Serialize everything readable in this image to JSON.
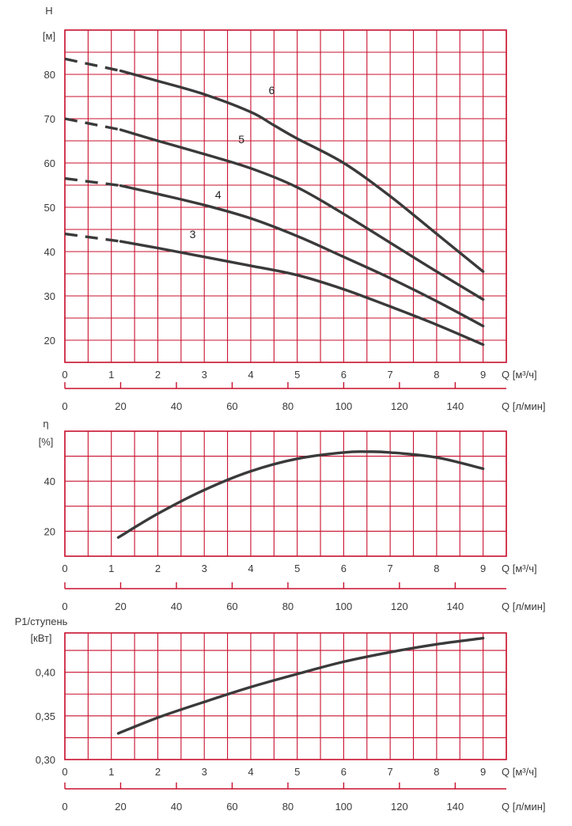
{
  "colors": {
    "grid": "#c8102e",
    "curve": "#3a3a3a",
    "text": "#3a3a3a"
  },
  "chart_data": [
    {
      "id": "head",
      "type": "line",
      "ylabel_lines": [
        "H",
        "[м]"
      ],
      "xlabel_primary": "Q [м³/ч]",
      "xlabel_secondary": "Q [л/мин]",
      "xlim": [
        0,
        9.5
      ],
      "ylim": [
        15,
        90
      ],
      "x_ticks": [
        0,
        1,
        2,
        3,
        4,
        5,
        6,
        7,
        8,
        9
      ],
      "y_ticks": [
        20,
        30,
        40,
        50,
        60,
        70,
        80
      ],
      "secondary_ticks": [
        0,
        20,
        40,
        60,
        80,
        100,
        120,
        140
      ],
      "series": [
        {
          "name": "3",
          "label_at": [
            2.75,
            43
          ],
          "dashed": [
            [
              0,
              44.0
            ],
            [
              1.2,
              42.3
            ]
          ],
          "x": [
            1.2,
            2,
            3,
            4,
            5,
            6,
            7,
            8,
            9
          ],
          "values": [
            42.3,
            40.8,
            38.8,
            36.8,
            34.7,
            31.5,
            27.6,
            23.5,
            19.0
          ]
        },
        {
          "name": "4",
          "label_at": [
            3.3,
            52
          ],
          "dashed": [
            [
              0,
              56.5
            ],
            [
              1.2,
              54.9
            ]
          ],
          "x": [
            1.2,
            2,
            3,
            4,
            5,
            6,
            7,
            8,
            9
          ],
          "values": [
            54.9,
            53.0,
            50.5,
            47.5,
            43.5,
            38.8,
            34.0,
            28.8,
            23.2
          ]
        },
        {
          "name": "5",
          "label_at": [
            3.8,
            64.5
          ],
          "dashed": [
            [
              0,
              70.0
            ],
            [
              1.2,
              67.5
            ]
          ],
          "x": [
            1.2,
            2,
            3,
            4,
            5,
            6,
            7,
            8,
            9
          ],
          "values": [
            67.5,
            65.0,
            62.0,
            58.8,
            54.5,
            48.5,
            42.0,
            35.5,
            29.2
          ]
        },
        {
          "name": "6",
          "label_at": [
            4.45,
            75.5
          ],
          "dashed": [
            [
              0,
              83.5
            ],
            [
              1.2,
              80.8
            ]
          ],
          "x": [
            1.2,
            2,
            3,
            4,
            4.5,
            5,
            6,
            7,
            8,
            9
          ],
          "values": [
            80.8,
            78.5,
            75.5,
            71.5,
            68.5,
            65.5,
            60.0,
            52.5,
            44.0,
            35.5
          ]
        }
      ]
    },
    {
      "id": "efficiency",
      "type": "line",
      "ylabel_lines": [
        "η",
        "[%]"
      ],
      "xlabel_primary": "Q [м³/ч]",
      "xlabel_secondary": "Q [л/мин]",
      "xlim": [
        0,
        9.5
      ],
      "ylim": [
        10,
        60
      ],
      "x_ticks": [
        0,
        1,
        2,
        3,
        4,
        5,
        6,
        7,
        8,
        9
      ],
      "y_ticks": [
        20,
        40
      ],
      "secondary_ticks": [
        0,
        20,
        40,
        60,
        80,
        100,
        120,
        140
      ],
      "series": [
        {
          "name": "η",
          "x": [
            1.15,
            2,
            3,
            4,
            5,
            6,
            6.5,
            7,
            8,
            9
          ],
          "values": [
            17.5,
            27.0,
            36.5,
            44.0,
            49.0,
            51.5,
            51.8,
            51.5,
            49.5,
            45.0
          ]
        }
      ]
    },
    {
      "id": "power",
      "type": "line",
      "ylabel_lines": [
        "P1/ступень",
        "[кВт]"
      ],
      "xlabel_primary": "Q [м³/ч]",
      "xlabel_secondary": "Q [л/мин]",
      "xlim": [
        0,
        9.5
      ],
      "ylim": [
        0.3,
        0.445
      ],
      "x_ticks": [
        0,
        1,
        2,
        3,
        4,
        5,
        6,
        7,
        8,
        9
      ],
      "y_ticks": [
        0.3,
        0.35,
        0.4
      ],
      "y_tick_labels": [
        "0,30",
        "0,35",
        "0,40"
      ],
      "secondary_ticks": [
        0,
        20,
        40,
        60,
        80,
        100,
        120,
        140
      ],
      "series": [
        {
          "name": "P1",
          "x": [
            1.15,
            2,
            3,
            4,
            5,
            6,
            7,
            8,
            9
          ],
          "values": [
            0.33,
            0.348,
            0.366,
            0.383,
            0.398,
            0.412,
            0.423,
            0.432,
            0.439
          ]
        }
      ]
    }
  ]
}
